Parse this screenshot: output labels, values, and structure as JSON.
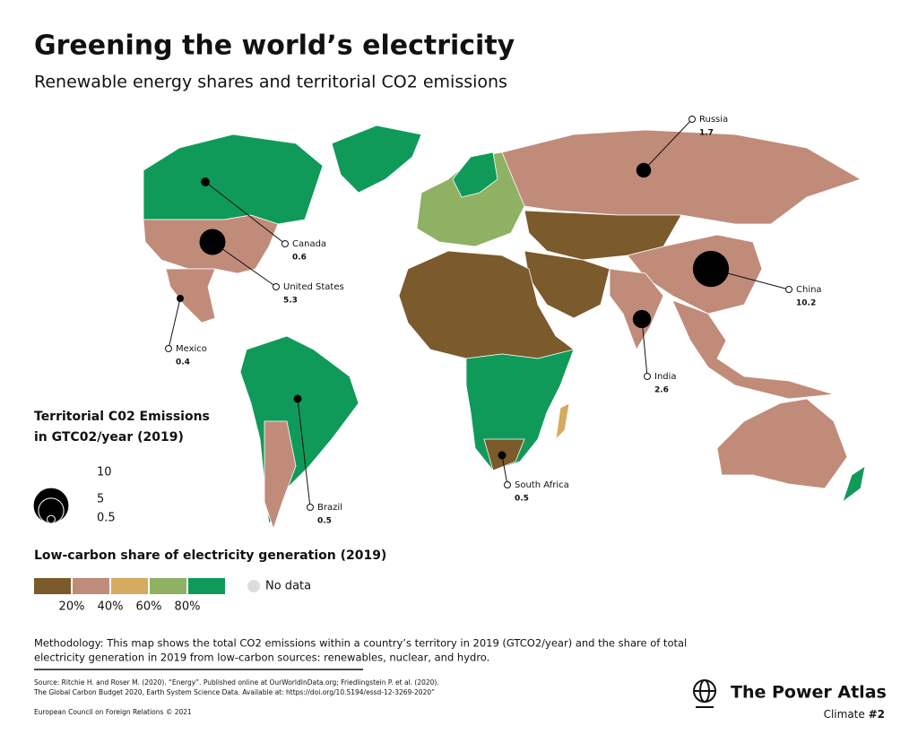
{
  "title": "Greening the world’s electricity",
  "subtitle": "Renewable energy shares and territorial CO2 emissions",
  "countries": [
    {
      "name": "Russia",
      "emissions": 1.7
    },
    {
      "name": "Canada",
      "emissions": 0.6
    },
    {
      "name": "United States",
      "emissions": 5.3
    },
    {
      "name": "Mexico",
      "emissions": 0.4
    },
    {
      "name": "Brazil",
      "emissions": 0.5
    },
    {
      "name": "South Africa",
      "emissions": 0.5
    },
    {
      "name": "India",
      "emissions": 2.6
    },
    {
      "name": "China",
      "emissions": 10.2
    }
  ],
  "size_legend": {
    "title": [
      "Territorial C02 Emissions",
      "in GTC02/year (2019)"
    ],
    "values": [
      10,
      5,
      0.5
    ]
  },
  "color_legend": {
    "title": "Low-carbon share of electricity generation (2019)",
    "colors": [
      "#7b5a2b",
      "#c18b79",
      "#d6aa5f",
      "#8fb163",
      "#0f9a5a"
    ],
    "ticks": [
      {
        "value": 20,
        "label": "20%"
      },
      {
        "value": 40,
        "label": "40%"
      },
      {
        "value": 60,
        "label": "60%"
      },
      {
        "value": 80,
        "label": "80%"
      }
    ],
    "no_data": "No data"
  },
  "methodology": [
    "Methodology: This map shows the total CO2 emissions within a country’s territory in 2019 (GTCO2/year) and the share of total",
    "electricity generation in 2019 from low-carbon sources: renewables, nuclear, and hydro."
  ],
  "source": [
    "Source: Ritchie H. and Roser M. (2020). “Energy”. Published online at OurWorldInData.org; Friedlingstein P. et al. (2020).",
    "The Global Carbon Budget 2020, Earth System Science Data. Available at: https://doi.org/10.5194/essd-12-3269-2020”"
  ],
  "copyright": "European Council on Foreign Relations © 2021",
  "brand": "The Power Atlas",
  "series": "Climate",
  "number": "#2"
}
